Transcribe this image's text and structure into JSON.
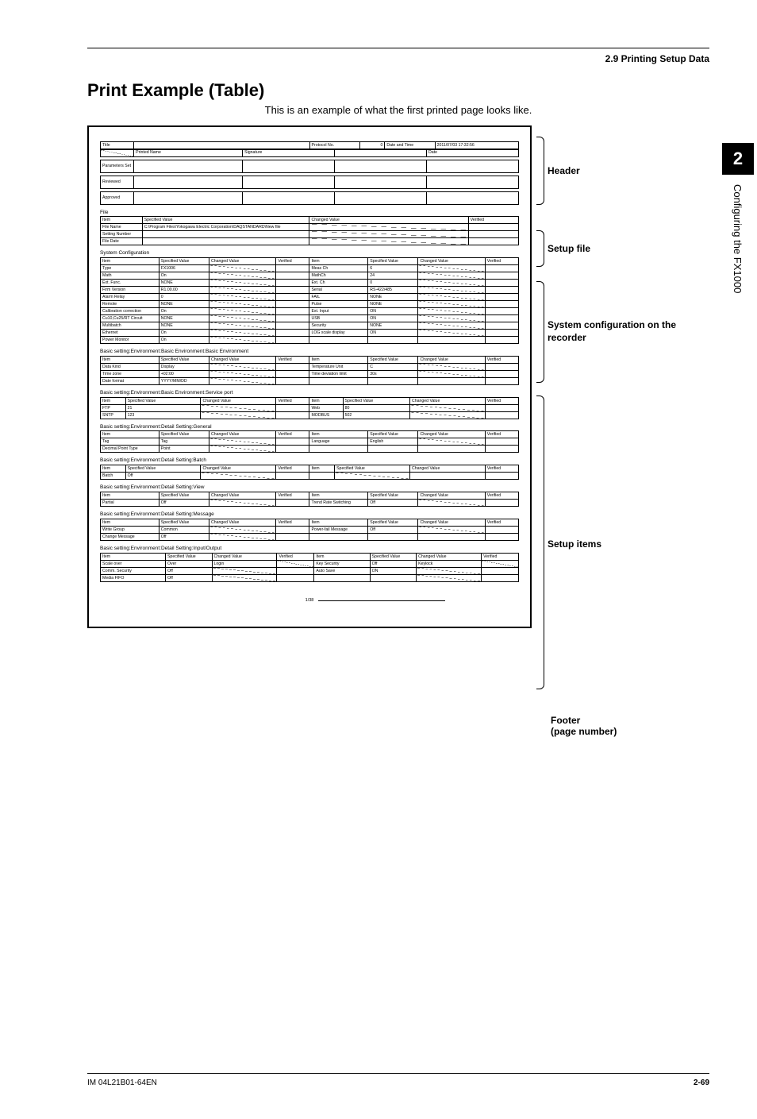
{
  "page": {
    "breadcrumb": "2.9  Printing Setup Data",
    "title": "Print Example (Table)",
    "intro": "This is an example of what the first printed page looks like.",
    "doc_id": "IM 04L21B01-64EN",
    "page_no": "2-69",
    "chapter_no": "2",
    "chapter_title": "Configuring the FX1000"
  },
  "annot": {
    "header": "Header",
    "setup_file": "Setup file",
    "sys": "System configuration on the recorder",
    "items": "Setup items",
    "footer": "Footer\n(page number)"
  },
  "sheet": {
    "top": {
      "title_l": "Title",
      "protocol": "Protocol No.",
      "protocol_v": "0",
      "dt_l": "Date and Time",
      "dt_v": "2011/07/03 17:32:56",
      "printed": "Printed Name",
      "sig": "Signature",
      "date": "Date",
      "param": "Parameters Set",
      "rev": "Reviewed",
      "appr": "Approved"
    },
    "file": {
      "sec": "File",
      "cols": [
        "Item",
        "Specified Value",
        "Changed Value",
        "Verified"
      ],
      "rows": [
        [
          "File Name",
          "C:\\Program Files\\Yokogawa Electric Corporation\\DAQSTANDARD\\New file"
        ],
        [
          "Setting Number",
          ""
        ],
        [
          "File Date",
          ""
        ]
      ]
    },
    "sys": {
      "sec": "System Configuration",
      "cols": [
        "Item",
        "Specified Value",
        "Changed Value",
        "Verified"
      ],
      "left": [
        [
          "Type",
          "FX1006"
        ],
        [
          "Math",
          "On"
        ],
        [
          "Ext. Func.",
          "NONE"
        ],
        [
          "Firm Version",
          "R1.00.00"
        ],
        [
          "Alarm Relay",
          "0"
        ],
        [
          "Remote",
          "NONE"
        ],
        [
          "Calibration correction",
          "On"
        ],
        [
          "Cu10,Cu25/RT Circuit",
          "NONE"
        ],
        [
          "Multibatch",
          "NONE"
        ],
        [
          "Ethernet",
          "On"
        ],
        [
          "Power Monitor",
          "On"
        ]
      ],
      "right": [
        [
          "Meas Ch",
          "6"
        ],
        [
          "MathCh",
          "24"
        ],
        [
          "Ext. Ch",
          "0"
        ],
        [
          "Serial",
          "RS-422/485"
        ],
        [
          "FAIL",
          "NONE"
        ],
        [
          "Pulse",
          "NONE"
        ],
        [
          "Ext. Input",
          "ON"
        ],
        [
          "USB",
          "ON"
        ],
        [
          "Security",
          "NONE"
        ],
        [
          "LOG scale display",
          "ON"
        ],
        [
          "",
          ""
        ]
      ]
    },
    "env1": {
      "sec": "Basic setting:Environment:Basic Environment:Basic Environment",
      "left": [
        [
          "Data Kind",
          "Display"
        ],
        [
          "Time zone",
          "+02:00"
        ],
        [
          "Date format",
          "YYYY/MM/DD"
        ]
      ],
      "right": [
        [
          "Temperature Unit",
          "C"
        ],
        [
          "Time deviation limit",
          "30s"
        ],
        [
          "",
          ""
        ]
      ]
    },
    "svc": {
      "sec": "Basic setting:Environment:Basic Environment:Service port",
      "left": [
        [
          "FTP",
          "21"
        ],
        [
          "SNTP",
          "123"
        ]
      ],
      "right": [
        [
          "Web",
          "80"
        ],
        [
          "MODBUS",
          "502"
        ]
      ]
    },
    "gen": {
      "sec": "Basic setting:Environment:Detail Setting:General",
      "left": [
        [
          "Tag",
          "Tag"
        ],
        [
          "Decimal Point Type",
          "Point"
        ]
      ],
      "right": [
        [
          "Language",
          "English"
        ],
        [
          "",
          ""
        ]
      ]
    },
    "batch": {
      "sec": "Basic setting:Environment:Detail Setting:Batch",
      "left": [
        [
          "Batch",
          "Off"
        ]
      ],
      "right": [
        [
          "",
          ""
        ]
      ]
    },
    "view": {
      "sec": "Basic setting:Environment:Detail Setting:View",
      "left": [
        [
          "Partial",
          "Off"
        ]
      ],
      "right": [
        [
          "Trend Rate Switching",
          "Off"
        ]
      ]
    },
    "msg": {
      "sec": "Basic setting:Environment:Detail Setting:Message",
      "left": [
        [
          "Write Group",
          "Common"
        ],
        [
          "Change Message",
          "Off"
        ]
      ],
      "right": [
        [
          "Power-fail Message",
          "Off"
        ],
        [
          "",
          ""
        ]
      ]
    },
    "io": {
      "sec": "Basic setting:Environment:Detail Setting:Input/Output",
      "left": [
        [
          "Scale over",
          "Over"
        ],
        [
          "Comm. Security",
          "Off"
        ],
        [
          "Media FIFO",
          "Off"
        ]
      ],
      "right": [
        [
          "Key Security",
          "Off"
        ],
        [
          "Auto Save",
          "ON"
        ],
        [
          "",
          ""
        ]
      ],
      "extra": [
        "Login",
        "Keylock"
      ]
    },
    "pgnum": "1/38"
  }
}
